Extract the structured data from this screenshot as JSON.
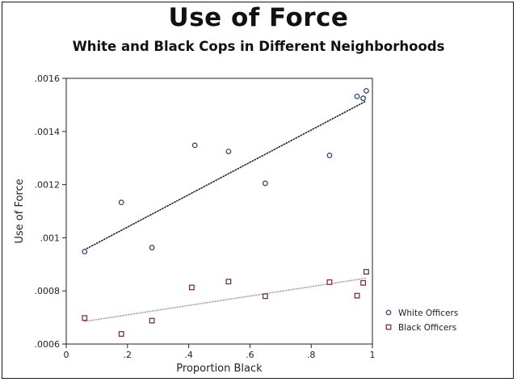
{
  "title": "Use of Force",
  "subtitle": "White and Black Cops in Different Neighborhoods",
  "chart_data": {
    "type": "scatter",
    "xlabel": "Proportion Black",
    "ylabel": "Use of Force",
    "xlim": [
      0,
      1
    ],
    "ylim": [
      0.0006,
      0.0016
    ],
    "x_ticks": [
      0,
      0.2,
      0.4,
      0.6,
      0.8,
      1
    ],
    "x_tick_labels": [
      "0",
      ".2",
      ".4",
      ".6",
      ".8",
      "1"
    ],
    "y_ticks": [
      0.0006,
      0.0008,
      0.001,
      0.0012,
      0.0014,
      0.0016
    ],
    "y_tick_labels": [
      ".0006",
      ".0008",
      ".001",
      ".0012",
      ".0014",
      ".0016"
    ],
    "grid": false,
    "legend_position": "bottom-right",
    "series": [
      {
        "name": "White Officers",
        "marker": "circle",
        "color": "#1f3f6b",
        "x": [
          0.06,
          0.18,
          0.28,
          0.42,
          0.53,
          0.65,
          0.86,
          0.95,
          0.97,
          0.98
        ],
        "y": [
          0.000948,
          0.001133,
          0.000963,
          0.001348,
          0.001325,
          0.001205,
          0.00131,
          0.001532,
          0.001525,
          0.001553
        ],
        "fit": {
          "x": [
            0.06,
            0.98
          ],
          "y": [
            0.000955,
            0.001515
          ],
          "style": "dotted",
          "color": "#222222"
        }
      },
      {
        "name": "Black Officers",
        "marker": "square",
        "color": "#7a2030",
        "x": [
          0.06,
          0.18,
          0.28,
          0.41,
          0.53,
          0.65,
          0.86,
          0.95,
          0.97,
          0.98
        ],
        "y": [
          0.000698,
          0.000638,
          0.000688,
          0.000813,
          0.000835,
          0.00078,
          0.000833,
          0.000782,
          0.00083,
          0.000872
        ],
        "fit": {
          "x": [
            0.06,
            0.98
          ],
          "y": [
            0.000685,
            0.000848
          ],
          "style": "dotted",
          "color": "#aaaaaa"
        }
      }
    ]
  }
}
